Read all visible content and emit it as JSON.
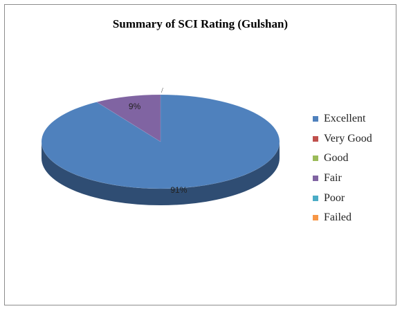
{
  "chart_data": {
    "type": "pie",
    "title": "Summary of SCI Rating (Gulshan)",
    "categories": [
      "Excellent",
      "Very Good",
      "Good",
      "Fair",
      "Poor",
      "Failed"
    ],
    "values": [
      91,
      0,
      0,
      9,
      0,
      0
    ],
    "data_labels": [
      "91%",
      "",
      "",
      "9%",
      "",
      ""
    ],
    "legend_position": "right",
    "colors": {
      "Excellent": "#4f81bd",
      "Very Good": "#c0504d",
      "Good": "#9bbb59",
      "Fair": "#8064a2",
      "Poor": "#4bacc6",
      "Failed": "#f79646"
    },
    "side_colors": {
      "Excellent": "#2f4d73",
      "Fair": "#4d3c62"
    }
  }
}
